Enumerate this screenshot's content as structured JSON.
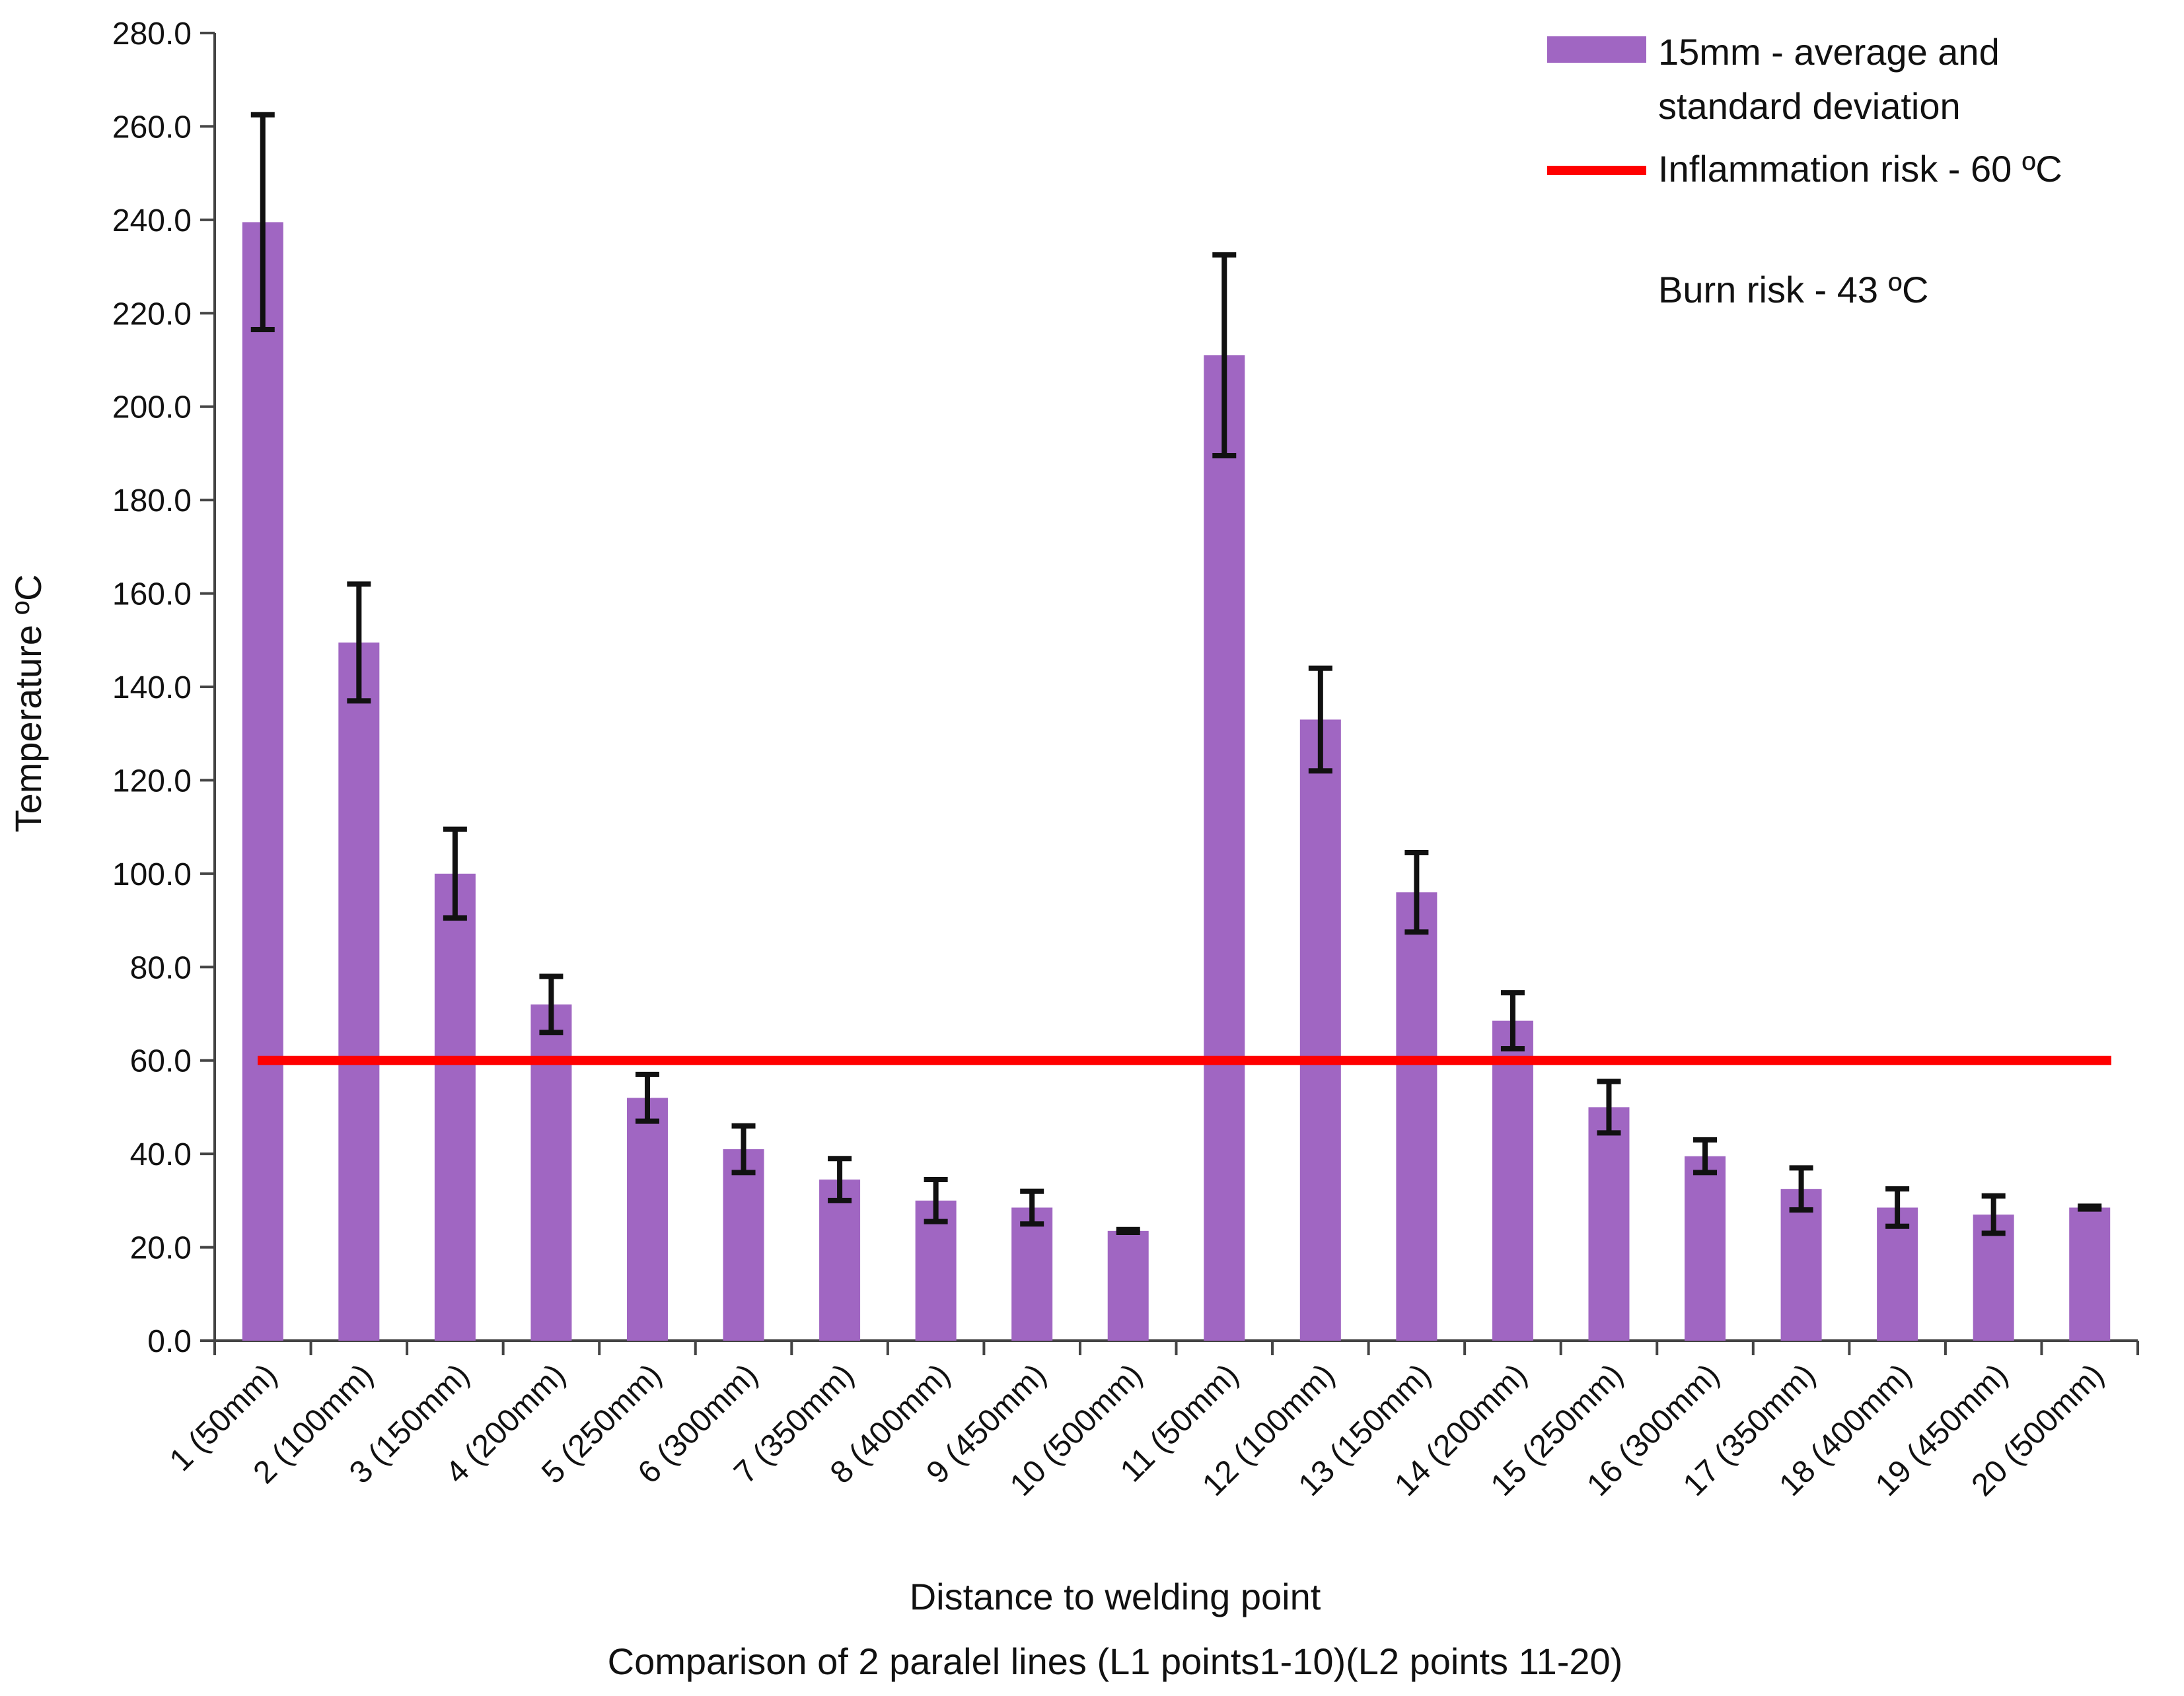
{
  "chart_data": {
    "type": "bar",
    "xlabel": "Distance to welding point",
    "subtitle": "Comparison of 2 paralel lines (L1 points1-10)(L2  points 11-20)",
    "ylabel": "Temperature ºC",
    "ylim": [
      0,
      280
    ],
    "yticks": [
      "0.0",
      "20.0",
      "40.0",
      "60.0",
      "80.0",
      "100.0",
      "120.0",
      "140.0",
      "160.0",
      "180.0",
      "200.0",
      "220.0",
      "240.0",
      "260.0",
      "280.0"
    ],
    "grid": false,
    "legend_position": "top-right",
    "categories": [
      "1 (50mm)",
      "2 (100mm)",
      "3 (150mm)",
      "4 (200mm)",
      "5 (250mm)",
      "6 (300mm)",
      "7 (350mm)",
      "8 (400mm)",
      "9 (450mm)",
      "10 (500mm)",
      "11 (50mm)",
      "12 (100mm)",
      "13 (150mm)",
      "14 (200mm)",
      "15 (250mm)",
      "16 (300mm)",
      "17 (350mm)",
      "18 (400mm)",
      "19 (450mm)",
      "20 (500mm)"
    ],
    "series": [
      {
        "name": "15mm - average and standard deviation",
        "color": "#a066c2",
        "values": [
          239.5,
          149.5,
          100.0,
          72.0,
          52.0,
          41.0,
          34.5,
          30.0,
          28.5,
          23.5,
          211.0,
          133.0,
          96.0,
          68.5,
          50.0,
          39.5,
          32.5,
          28.5,
          27.0,
          28.5
        ],
        "std": [
          23.0,
          12.5,
          9.5,
          6.0,
          5.0,
          5.0,
          4.5,
          4.5,
          3.5,
          0.3,
          21.5,
          11.0,
          8.5,
          6.0,
          5.5,
          3.5,
          4.5,
          4.0,
          4.0,
          0.3
        ]
      }
    ],
    "reference_lines": [
      {
        "name": "Inflammation risk - 60 ºC",
        "value": 60,
        "color": "#ff0000"
      },
      {
        "name": "Burn risk - 43 ºC",
        "value": 43,
        "colors": [
          "#ffff00",
          "#ff8000",
          "#ff2a00"
        ]
      }
    ]
  }
}
